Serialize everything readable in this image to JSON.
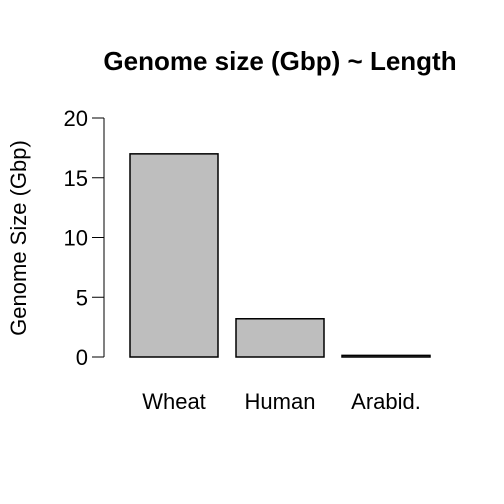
{
  "chart_data": {
    "type": "bar",
    "title": "Genome size (Gbp) ~ Length",
    "xlabel": "",
    "ylabel": "Genome Size (Gbp)",
    "categories": [
      "Wheat",
      "Human",
      "Arabid."
    ],
    "values": [
      17,
      3.2,
      0.135
    ],
    "ylim": [
      0,
      20
    ],
    "yticks": [
      0,
      5,
      10,
      15,
      20
    ],
    "bar_color": "#bebebe",
    "grid": false
  }
}
